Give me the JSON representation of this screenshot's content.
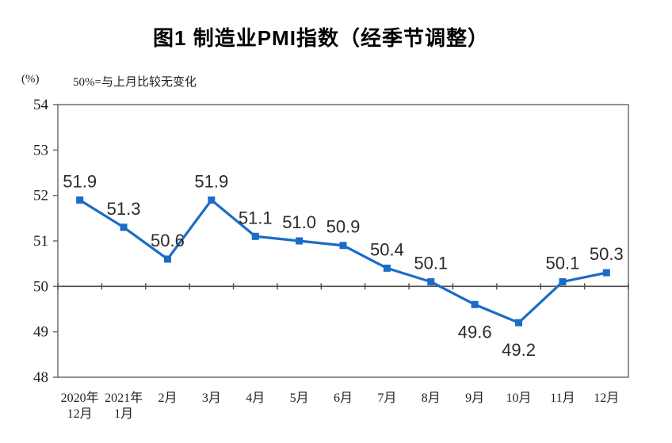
{
  "title": "图1 制造业PMI指数（经季节调整）",
  "unit_label": "(%)",
  "note": "50%=与上月比较无变化",
  "chart_data": {
    "type": "line",
    "title": "图1 制造业PMI指数（经季节调整）",
    "unit": "%",
    "annotation": "50%=与上月比较无变化",
    "categories": [
      "2020年\n12月",
      "2021年\n1月",
      "2月",
      "3月",
      "4月",
      "5月",
      "6月",
      "7月",
      "8月",
      "9月",
      "10月",
      "11月",
      "12月"
    ],
    "values": [
      51.9,
      51.3,
      50.6,
      51.9,
      51.1,
      51.0,
      50.9,
      50.4,
      50.1,
      49.6,
      49.2,
      50.1,
      50.3
    ],
    "data_labels": [
      "51.9",
      "51.3",
      "50.6",
      "51.9",
      "51.1",
      "51.0",
      "50.9",
      "50.4",
      "50.1",
      "49.6",
      "49.2",
      "50.1",
      "50.3"
    ],
    "data_label_position": [
      "above",
      "above",
      "above",
      "above",
      "above",
      "above",
      "above",
      "above",
      "above",
      "below",
      "below",
      "above",
      "above"
    ],
    "ylim": [
      48,
      54
    ],
    "ytick_labels": [
      "48",
      "49",
      "50",
      "51",
      "52",
      "53",
      "54"
    ],
    "axis_cross_value": 50,
    "grid": false,
    "legend": false,
    "marker": "square",
    "colors": {
      "line": "#1b6bc9",
      "marker": "#1b6bc9",
      "plot_border": "#6e6e6e",
      "baseline": "#4d4d4d",
      "data_label": "#2b2b2b",
      "axis_text": "#1e1e28"
    }
  }
}
